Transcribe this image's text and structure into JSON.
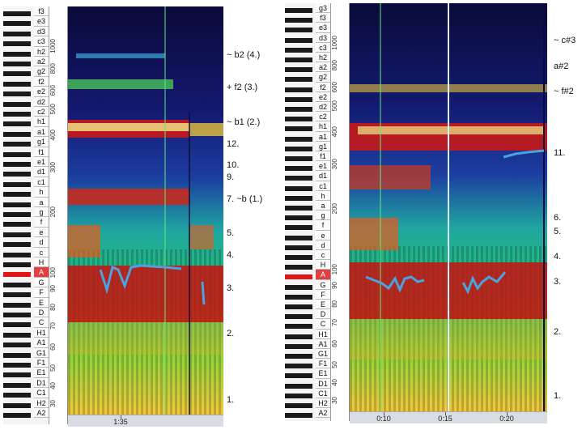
{
  "left": {
    "keys": [
      "f3",
      "e3",
      "d3",
      "c3",
      "h2",
      "a2",
      "g2",
      "f2",
      "e2",
      "d2",
      "c2",
      "h1",
      "a1",
      "g1",
      "f1",
      "e1",
      "d1",
      "c1",
      "h",
      "a",
      "g",
      "f",
      "e",
      "d",
      "c",
      "H",
      "A",
      "G",
      "F",
      "E",
      "D",
      "C",
      "H1",
      "A1",
      "G1",
      "F1",
      "E1",
      "D1",
      "C1",
      "H2",
      "A2"
    ],
    "freq_labels": [
      "1000",
      "800",
      "600",
      "500",
      "400",
      "300",
      "200",
      "100",
      "90",
      "80",
      "70",
      "60",
      "50",
      "40",
      "30"
    ],
    "time_labels": [
      "1:35"
    ],
    "annotations": [
      "~ b2 (4.)",
      "+ f2 (3.)",
      "~ b1 (2.)",
      "12.",
      "10.",
      "9.",
      "7. ~b (1.)",
      "5.",
      "4.",
      "3.",
      "2.",
      "1."
    ]
  },
  "right": {
    "keys": [
      "g3",
      "f3",
      "e3",
      "d3",
      "c3",
      "h2",
      "a2",
      "g2",
      "f2",
      "e2",
      "d2",
      "c2",
      "h1",
      "a1",
      "g1",
      "f1",
      "e1",
      "d1",
      "c1",
      "h",
      "a",
      "g",
      "f",
      "e",
      "d",
      "c",
      "H",
      "A",
      "G",
      "F",
      "E",
      "D",
      "C",
      "H1",
      "A1",
      "G1",
      "F1",
      "E1",
      "D1",
      "C1",
      "H2",
      "A2"
    ],
    "freq_labels": [
      "1000",
      "800",
      "600",
      "500",
      "400",
      "300",
      "200",
      "100",
      "90",
      "80",
      "70",
      "60",
      "50",
      "40",
      "30"
    ],
    "time_labels": [
      "0:10",
      "0:15",
      "0:20"
    ],
    "annotations": [
      "~ c#3",
      "a#2",
      "~ f#2",
      "11.",
      "6.",
      "5.",
      "4.",
      "3.",
      "2.",
      "1."
    ]
  },
  "colors": {
    "highlight_key": "#e01515",
    "pitch_trace": "#4aa3e0"
  }
}
